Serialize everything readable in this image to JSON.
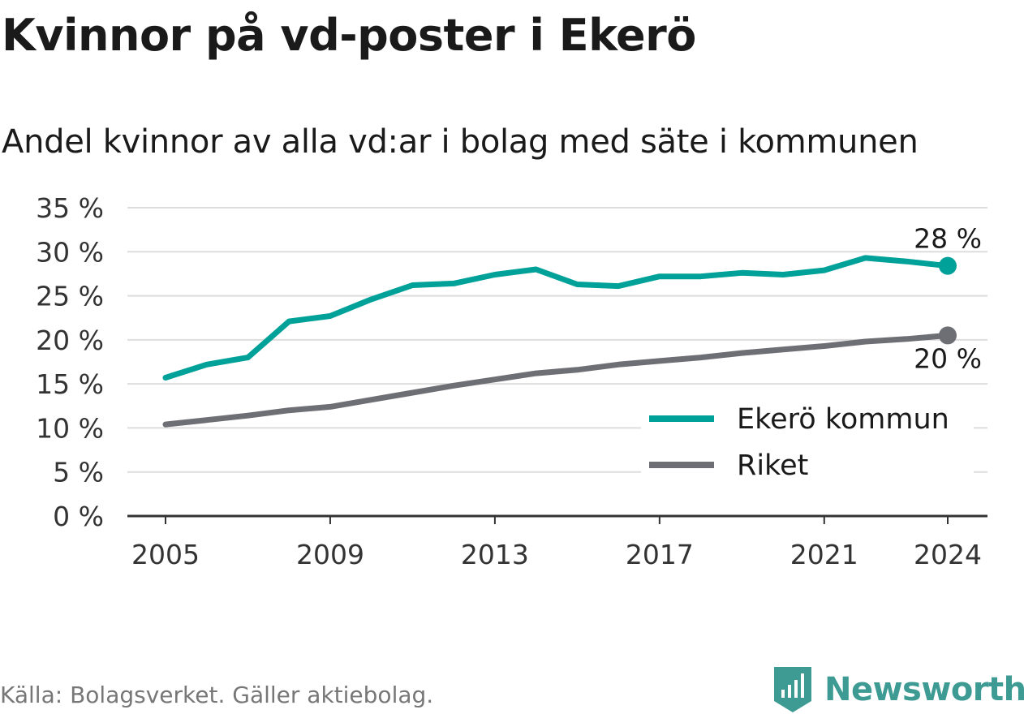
{
  "title": "Kvinnor på vd-poster i Ekerö",
  "subtitle": "Andel kvinnor av alla vd:ar i bolag med säte i kommunen",
  "source": "Källa: Bolagsverket. Gäller aktiebolag.",
  "brand": {
    "name": "Newsworthy",
    "icon": "newsworthy-logo-icon",
    "color": "#3d9b93"
  },
  "colors": {
    "ekero": "#00a199",
    "riket": "#6e6e75",
    "grid": "#dddddd",
    "axis": "#333333"
  },
  "chart_data": {
    "type": "line",
    "title": "Kvinnor på vd-poster i Ekerö",
    "subtitle": "Andel kvinnor av alla vd:ar i bolag med säte i kommunen",
    "x": [
      2005,
      2006,
      2007,
      2008,
      2009,
      2010,
      2011,
      2012,
      2013,
      2014,
      2015,
      2016,
      2017,
      2018,
      2019,
      2020,
      2021,
      2022,
      2023,
      2024
    ],
    "x_ticks": [
      "2005",
      "2009",
      "2013",
      "2017",
      "2021",
      "2024"
    ],
    "y_ticks": [
      "0 %",
      "5 %",
      "10 %",
      "15 %",
      "20 %",
      "25 %",
      "30 %",
      "35 %"
    ],
    "ylim": [
      0,
      35
    ],
    "grid": true,
    "legend_position": "bottom-right",
    "series": [
      {
        "name": "Ekerö kommun",
        "color": "#00a199",
        "values": [
          15.7,
          17.2,
          18.0,
          22.1,
          22.7,
          24.6,
          26.2,
          26.4,
          27.4,
          28.0,
          26.3,
          26.1,
          27.2,
          27.2,
          27.6,
          27.4,
          27.9,
          29.3,
          28.9,
          28.4
        ],
        "end_label": "28 %"
      },
      {
        "name": "Riket",
        "color": "#6e6e75",
        "values": [
          10.4,
          10.9,
          11.4,
          12.0,
          12.4,
          13.2,
          14.0,
          14.8,
          15.5,
          16.2,
          16.6,
          17.2,
          17.6,
          18.0,
          18.5,
          18.9,
          19.3,
          19.8,
          20.1,
          20.5
        ],
        "end_label": "20 %"
      }
    ]
  }
}
